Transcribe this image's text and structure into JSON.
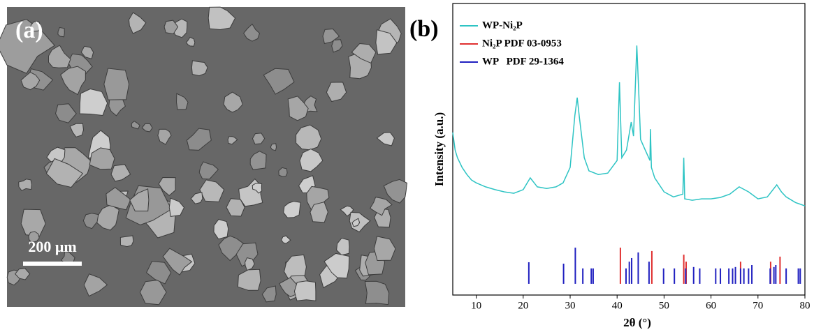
{
  "panel_a": {
    "label": "(a)",
    "scale_bar": "200 μm"
  },
  "chart_data": {
    "type": "line",
    "panel_label": "(b)",
    "xlabel": "2θ (°)",
    "ylabel": "Intensity (a.u.)",
    "xlim": [
      5,
      80
    ],
    "xticks": [
      10,
      20,
      30,
      40,
      50,
      60,
      70,
      80
    ],
    "ylim": [
      -4,
      100
    ],
    "legend": "upper left",
    "series": [
      {
        "name": "WP-Ni₂P",
        "color": "#2ec4c4",
        "type": "line",
        "x": [
          5,
          5.5,
          6,
          7,
          8,
          9,
          10,
          12,
          14,
          16,
          18,
          20,
          21.5,
          23,
          25,
          27,
          28.5,
          30,
          31,
          31.5,
          32,
          33,
          34,
          36,
          38,
          40,
          40.5,
          41,
          42,
          43,
          43.5,
          44.2,
          44.6,
          45,
          46,
          47,
          47.1,
          47.3,
          48,
          50,
          52,
          54,
          54.2,
          54.4,
          56,
          58,
          60,
          62,
          64,
          66,
          68,
          70,
          72,
          74,
          75,
          76,
          78,
          80
        ],
        "values": [
          54,
          47.7,
          45,
          41.5,
          39,
          37,
          36,
          34.6,
          33.6,
          32.8,
          32.3,
          33.6,
          37.8,
          34.6,
          34,
          34.6,
          36,
          41.5,
          60,
          66.4,
          59,
          45,
          40.3,
          39,
          39.5,
          44,
          71.9,
          45,
          47.7,
          57.7,
          52.7,
          85,
          68.9,
          51.5,
          47.7,
          44,
          55.2,
          41.5,
          37.8,
          32.8,
          31,
          32,
          45,
          30.3,
          29.8,
          30.3,
          30.3,
          30.8,
          32,
          34.6,
          32.8,
          30.3,
          31,
          35.3,
          32.8,
          31,
          29,
          27.8
        ]
      },
      {
        "name": "Ni₂P PDF 03-0953",
        "color": "#e03030",
        "type": "stick",
        "x": [
          40.7,
          47.4,
          54.2,
          54.7,
          66.3,
          72.7,
          74.7
        ],
        "values": [
          12.9,
          11.7,
          10.4,
          7.9,
          7.9,
          7.9,
          9.7
        ]
      },
      {
        "name": "WP   PDF 29-1364",
        "color": "#2020c0",
        "type": "stick",
        "x": [
          21.2,
          28.6,
          31.1,
          32.7,
          34.5,
          34.9,
          41.9,
          42.6,
          43.1,
          44.5,
          46.8,
          49.9,
          52.2,
          54.6,
          56.3,
          57.6,
          61,
          62,
          63.8,
          64.6,
          65.2,
          66.3,
          67,
          68,
          68.7,
          72.6,
          73.4,
          73.8,
          76,
          78.6,
          79
        ],
        "values": [
          7.7,
          7.2,
          12.9,
          5.5,
          5.5,
          5.5,
          5.5,
          7.9,
          9.2,
          11.2,
          7.9,
          5.5,
          5.5,
          5.5,
          6,
          5.5,
          5.5,
          5.5,
          5.5,
          5.5,
          6,
          5.5,
          5.5,
          5.5,
          6.7,
          5.5,
          6,
          6.7,
          5.5,
          5.5,
          5.5
        ]
      }
    ]
  }
}
